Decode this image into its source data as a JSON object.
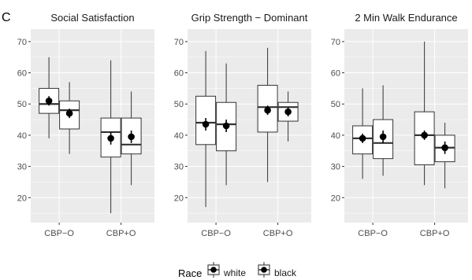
{
  "figure": {
    "panel_letter": "C",
    "legend_title": "Race"
  },
  "chart_data": {
    "type": "box",
    "categories": [
      "CBP−O",
      "CBP+O"
    ],
    "groups": [
      "white",
      "black"
    ],
    "ylim": [
      12,
      74
    ],
    "yticks": [
      20,
      30,
      40,
      50,
      60,
      70
    ],
    "legend": {
      "position": "bottom",
      "entries": [
        "white",
        "black"
      ]
    },
    "grid": true,
    "panel_background": "#ebebeb",
    "grid_color": "#ffffff",
    "facets": [
      {
        "title": "Social Satisfaction",
        "boxes": [
          {
            "category": "CBP−O",
            "group": "white",
            "whisker_low": 39,
            "q1": 47,
            "median": 50,
            "q3": 55,
            "whisker_high": 65,
            "mean": 51,
            "err_low": 49.5,
            "err_high": 52.5
          },
          {
            "category": "CBP−O",
            "group": "black",
            "whisker_low": 34,
            "q1": 42,
            "median": 48,
            "q3": 51,
            "whisker_high": 57,
            "mean": 47,
            "err_low": 45.5,
            "err_high": 48.5
          },
          {
            "category": "CBP+O",
            "group": "white",
            "whisker_low": 15,
            "q1": 33,
            "median": 41,
            "q3": 45.5,
            "whisker_high": 64,
            "mean": 39,
            "err_low": 37,
            "err_high": 41
          },
          {
            "category": "CBP+O",
            "group": "black",
            "whisker_low": 24,
            "q1": 34,
            "median": 37,
            "q3": 45.5,
            "whisker_high": 54,
            "mean": 39.5,
            "err_low": 37.5,
            "err_high": 41.5
          }
        ]
      },
      {
        "title": "Grip Strength − Dominant",
        "boxes": [
          {
            "category": "CBP−O",
            "group": "white",
            "whisker_low": 17,
            "q1": 37,
            "median": 44,
            "q3": 52.5,
            "whisker_high": 67,
            "mean": 43.5,
            "err_low": 41.5,
            "err_high": 45.5
          },
          {
            "category": "CBP−O",
            "group": "black",
            "whisker_low": 24,
            "q1": 35,
            "median": 43.5,
            "q3": 50.5,
            "whisker_high": 63,
            "mean": 43,
            "err_low": 41,
            "err_high": 45
          },
          {
            "category": "CBP+O",
            "group": "white",
            "whisker_low": 25,
            "q1": 41,
            "median": 49,
            "q3": 56,
            "whisker_high": 68,
            "mean": 48,
            "err_low": 46.5,
            "err_high": 49.5
          },
          {
            "category": "CBP+O",
            "group": "black",
            "whisker_low": 38,
            "q1": 44.5,
            "median": 49,
            "q3": 50.5,
            "whisker_high": 54,
            "mean": 47.5,
            "err_low": 46,
            "err_high": 49
          }
        ]
      },
      {
        "title": "2 Min Walk Endurance",
        "boxes": [
          {
            "category": "CBP−O",
            "group": "white",
            "whisker_low": 26,
            "q1": 34,
            "median": 39,
            "q3": 43,
            "whisker_high": 55,
            "mean": 39,
            "err_low": 37.5,
            "err_high": 40.5
          },
          {
            "category": "CBP−O",
            "group": "black",
            "whisker_low": 27,
            "q1": 32.5,
            "median": 37.5,
            "q3": 45,
            "whisker_high": 56,
            "mean": 39.5,
            "err_low": 37.5,
            "err_high": 41.5
          },
          {
            "category": "CBP+O",
            "group": "white",
            "whisker_low": 24,
            "q1": 30.5,
            "median": 40,
            "q3": 47.5,
            "whisker_high": 70,
            "mean": 40,
            "err_low": 38.5,
            "err_high": 41.5
          },
          {
            "category": "CBP+O",
            "group": "black",
            "whisker_low": 23,
            "q1": 31.5,
            "median": 36,
            "q3": 40,
            "whisker_high": 44,
            "mean": 36,
            "err_low": 34,
            "err_high": 38
          }
        ]
      }
    ]
  }
}
